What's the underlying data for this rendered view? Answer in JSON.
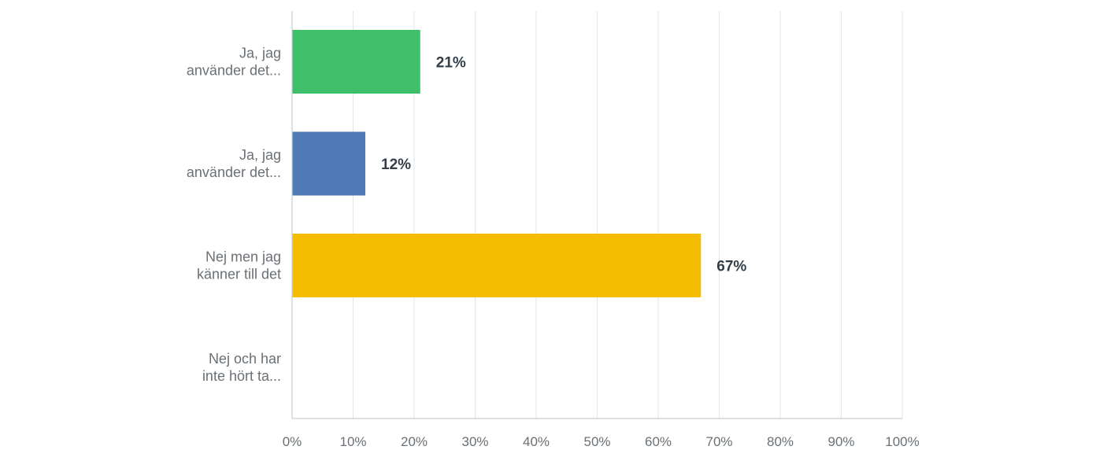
{
  "chart_data": {
    "type": "bar",
    "orientation": "horizontal",
    "categories": [
      [
        "Ja, jag",
        "använder det..."
      ],
      [
        "Ja, jag",
        "använder det..."
      ],
      [
        "Nej men jag",
        "känner till det"
      ],
      [
        "Nej och har",
        "inte hört ta..."
      ]
    ],
    "values": [
      21,
      12,
      67,
      0
    ],
    "data_labels": [
      "21%",
      "12%",
      "67%",
      ""
    ],
    "colors": [
      "#3fbf6a",
      "#4e7ab5",
      "#f6bd00",
      "#d9534f"
    ],
    "xlim": [
      0,
      100
    ],
    "xticks": [
      "0%",
      "10%",
      "20%",
      "30%",
      "40%",
      "50%",
      "60%",
      "70%",
      "80%",
      "90%",
      "100%"
    ],
    "grid": true,
    "legend": "none",
    "title": "",
    "xlabel": "",
    "ylabel": ""
  }
}
